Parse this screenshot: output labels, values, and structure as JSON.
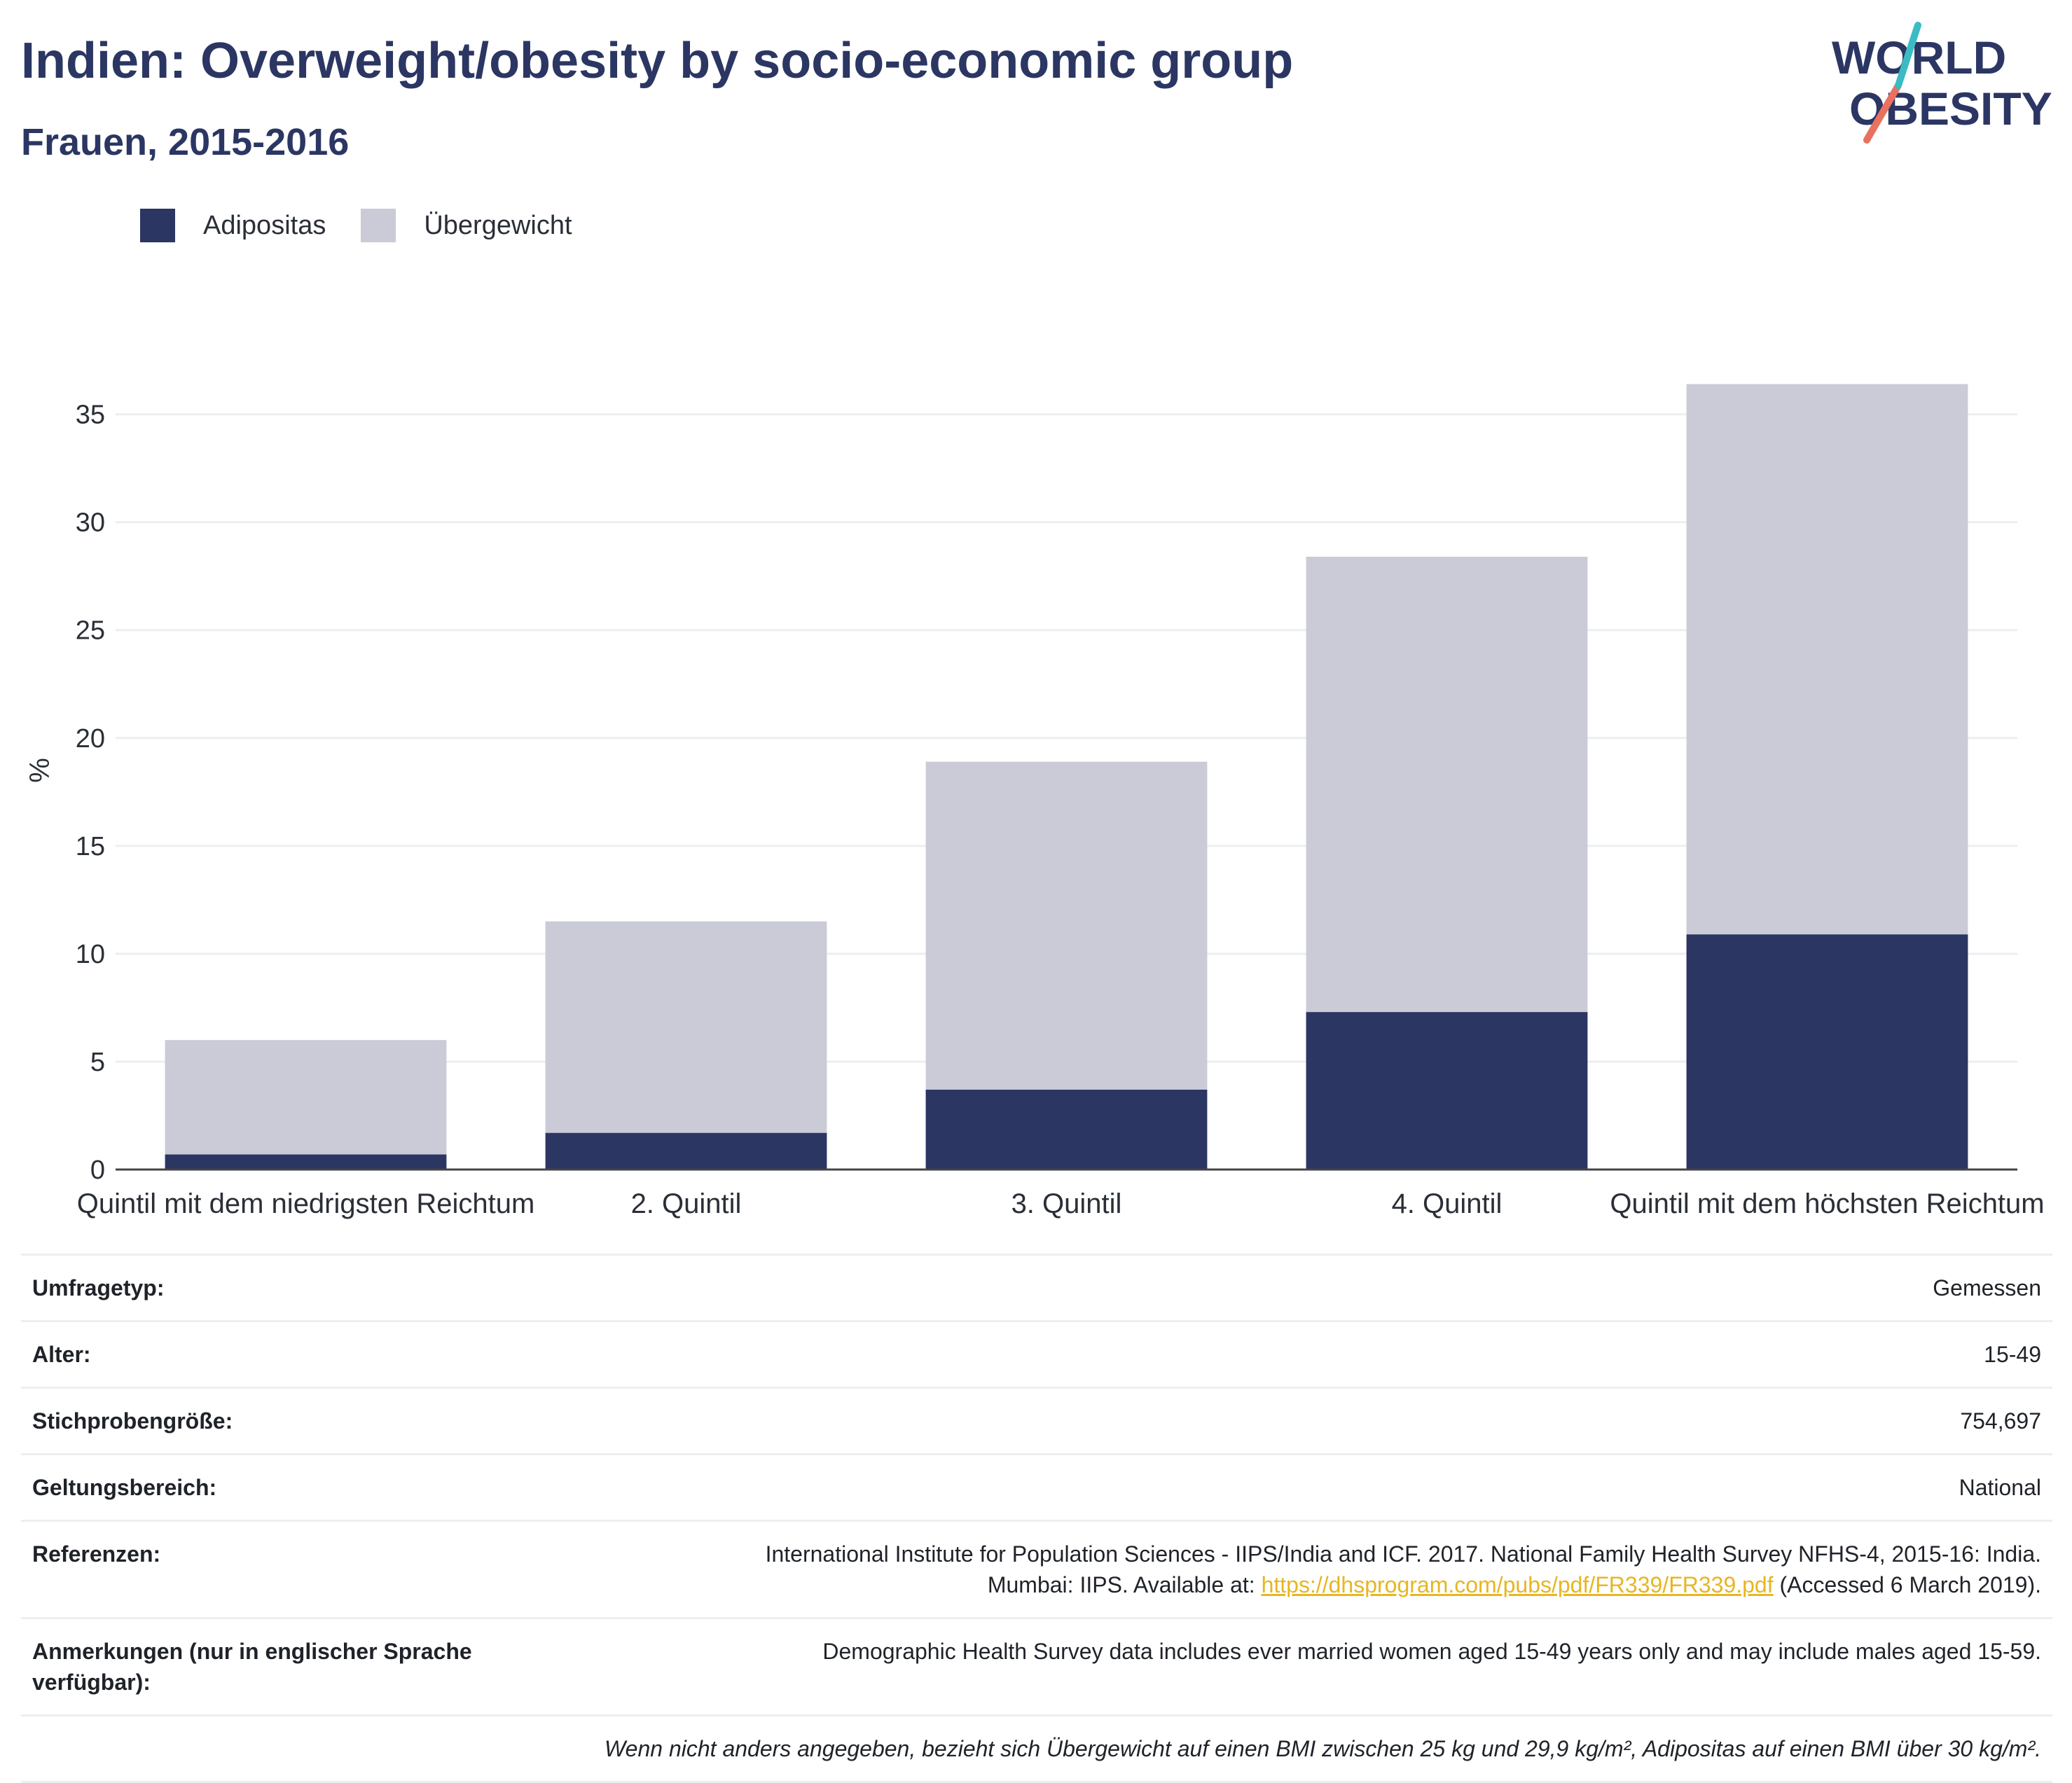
{
  "header": {
    "title": "Indien: Overweight/obesity by socio-economic group",
    "subtitle": "Frauen, 2015-2016"
  },
  "logo": {
    "line1": "WORLD",
    "line2": "OBESITY"
  },
  "legend": [
    {
      "label": "Adipositas",
      "color": "#2b3663"
    },
    {
      "label": "Übergewicht",
      "color": "#cacbd7"
    }
  ],
  "chart_data": {
    "type": "bar",
    "stacked": true,
    "categories": [
      "Quintil mit dem niedrigsten Reichtum",
      "2. Quintil",
      "3. Quintil",
      "4. Quintil",
      "Quintil mit dem höchsten Reichtum"
    ],
    "series": [
      {
        "name": "Adipositas",
        "color": "#2b3663",
        "values": [
          0.7,
          1.7,
          3.7,
          7.3,
          10.9
        ]
      },
      {
        "name": "Übergewicht",
        "color": "#cacbd7",
        "values": [
          5.3,
          9.8,
          15.2,
          21.1,
          25.5
        ]
      }
    ],
    "ylabel": "%",
    "xlabel": "",
    "ylim": [
      0,
      37
    ],
    "yticks": [
      0,
      5,
      10,
      15,
      20,
      25,
      30,
      35
    ],
    "grid": true,
    "legend_position": "top-left"
  },
  "info": {
    "survey_type": {
      "label": "Umfragetyp:",
      "value": "Gemessen"
    },
    "age": {
      "label": "Alter:",
      "value": "15-49"
    },
    "sample": {
      "label": "Stichprobengröße:",
      "value": "754,697"
    },
    "scope": {
      "label": "Geltungsbereich:",
      "value": "National"
    },
    "references": {
      "label": "Referenzen:",
      "line1": "International Institute for Population Sciences - IIPS/India and ICF. 2017. National Family Health Survey NFHS-4, 2015-16: India.",
      "line2_pre": "Mumbai: IIPS. Available at: ",
      "link": "https://dhsprogram.com/pubs/pdf/FR339/FR339.pdf",
      "line2_post": " (Accessed 6 March 2019)."
    },
    "notes": {
      "label": "Anmerkungen (nur in englischer Sprache verfügbar):",
      "value": "Demographic Health Survey data includes ever married women aged 15-49 years only and may include males aged 15-59."
    },
    "footnote": "Wenn nicht anders angegeben, bezieht sich Übergewicht auf einen BMI zwischen 25 kg und 29,9 kg/m², Adipositas auf einen BMI über 30 kg/m²."
  }
}
